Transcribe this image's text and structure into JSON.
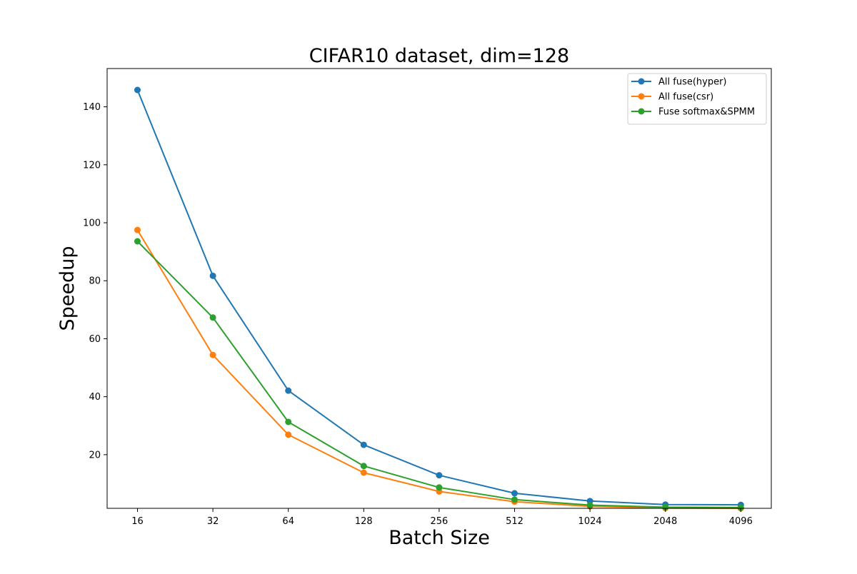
{
  "chart_data": {
    "type": "line",
    "title": "CIFAR10 dataset, dim=128",
    "xlabel": "Batch Size",
    "ylabel": "Speedup",
    "categories": [
      "16",
      "32",
      "64",
      "128",
      "256",
      "512",
      "1024",
      "2048",
      "4096"
    ],
    "x_scale": "log2",
    "ylim": [
      1.5,
      153.2
    ],
    "yticks": [
      20,
      40,
      60,
      80,
      100,
      120,
      140
    ],
    "grid": false,
    "legend_position": "top-right",
    "marker": "circle",
    "series": [
      {
        "name": "All fuse(hyper)",
        "color": "#1f77b4",
        "values": [
          145.8,
          81.7,
          42.1,
          23.4,
          12.9,
          6.7,
          4.0,
          2.8,
          2.7
        ]
      },
      {
        "name": "All fuse(csr)",
        "color": "#ff7f0e",
        "values": [
          97.5,
          54.4,
          26.9,
          13.8,
          7.3,
          3.8,
          2.2,
          1.6,
          1.5
        ]
      },
      {
        "name": "Fuse softmax&SPMM",
        "color": "#2ca02c",
        "values": [
          93.6,
          67.3,
          31.3,
          16.1,
          8.7,
          4.5,
          2.6,
          1.9,
          1.8
        ]
      }
    ]
  }
}
